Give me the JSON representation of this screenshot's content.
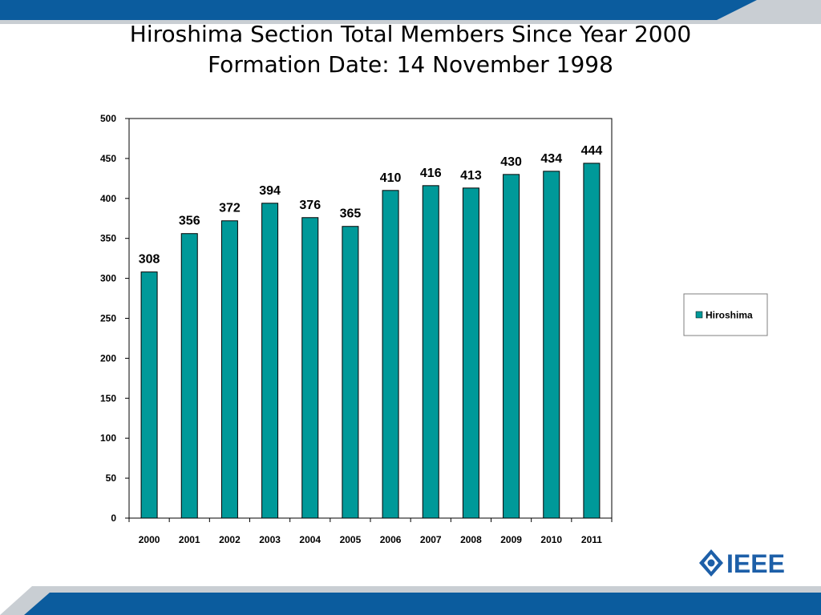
{
  "slide": {
    "title_line1": "Hiroshima Section Total Members Since Year 2000",
    "title_line2": "Formation Date: 14 November 1998",
    "logo_text": "IEEE",
    "colors": {
      "band_blue": "#0b5c9e",
      "band_grey": "#c9ced3",
      "bar_fill": "#009999",
      "logo_blue": "#1d5fa8"
    }
  },
  "chart_data": {
    "type": "bar",
    "title": "",
    "xlabel": "",
    "ylabel": "",
    "categories": [
      "2000",
      "2001",
      "2002",
      "2003",
      "2004",
      "2005",
      "2006",
      "2007",
      "2008",
      "2009",
      "2010",
      "2011"
    ],
    "series": [
      {
        "name": "Hiroshima",
        "values": [
          308,
          356,
          372,
          394,
          376,
          365,
          410,
          416,
          413,
          430,
          434,
          444
        ],
        "color": "#009999"
      }
    ],
    "ylim": [
      0,
      500
    ],
    "yticks": [
      0,
      50,
      100,
      150,
      200,
      250,
      300,
      350,
      400,
      450,
      500
    ],
    "grid": false,
    "legend_position": "right",
    "data_labels": true
  }
}
